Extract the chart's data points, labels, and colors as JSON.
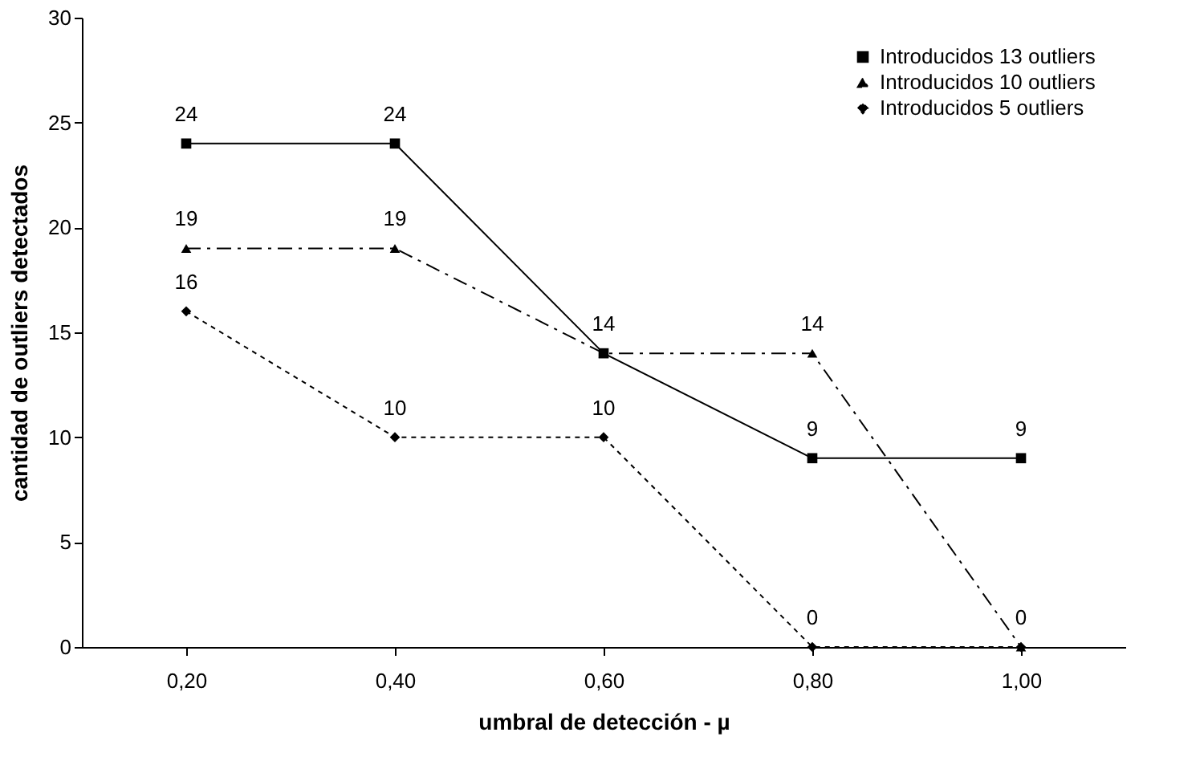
{
  "chart_data": {
    "type": "line",
    "xlabel": "umbral de detección - µ",
    "ylabel": "cantidad de outliers detectados",
    "categories": [
      "0,20",
      "0,40",
      "0,60",
      "0,80",
      "1,00"
    ],
    "ylim": [
      0,
      30
    ],
    "yticks": [
      0,
      5,
      10,
      15,
      20,
      25,
      30
    ],
    "legend": "top right",
    "series": [
      {
        "name": "Introducidos 13 outliers",
        "color": "#000000",
        "marker": "square",
        "line_style": "solid",
        "values": [
          24,
          24,
          14,
          9,
          9
        ],
        "value_labels": [
          "24",
          "24",
          "14",
          "9",
          "9"
        ]
      },
      {
        "name": "Introducidos 10 outliers",
        "color": "#000000",
        "marker": "triangle",
        "line_style": "dashed",
        "values": [
          19,
          19,
          14,
          14,
          0
        ],
        "value_labels": [
          "19",
          "19",
          null,
          "14",
          "0"
        ]
      },
      {
        "name": "Introducidos 5 outliers",
        "color": "#000000",
        "marker": "diamond",
        "line_style": "dotted",
        "values": [
          16,
          10,
          10,
          0,
          0
        ],
        "value_labels": [
          "16",
          "10",
          "10",
          "0",
          null
        ]
      }
    ]
  }
}
